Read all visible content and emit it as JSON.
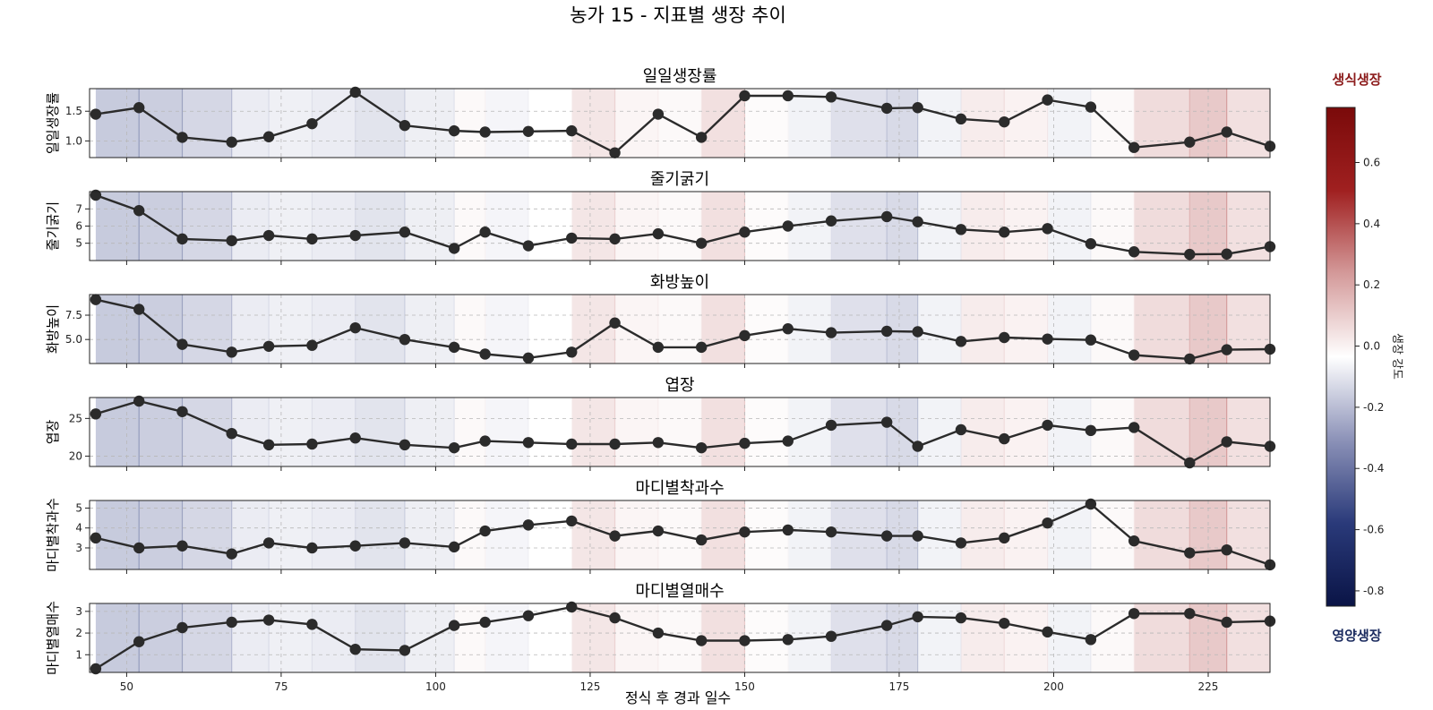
{
  "title": "농가 15 - 지표별 생장 추이",
  "xlabel": "정식 후 경과 일수",
  "colorbar": {
    "label": "생장 강도",
    "top_annotation": "생식생장",
    "bottom_annotation": "영양생장",
    "top_annotation_color": "#8b1a1a",
    "bottom_annotation_color": "#1a2a5e",
    "range": [
      -0.85,
      0.78
    ],
    "ticks": [
      0.6,
      0.4,
      0.2,
      0.0,
      -0.2,
      -0.4,
      -0.6,
      -0.8
    ],
    "tick_labels": [
      "0.6",
      "0.4",
      "0.2",
      "0.0",
      "-0.2",
      "-0.4",
      "-0.6",
      "-0.8"
    ],
    "colormap": [
      "#0a1446",
      "#2a3a7a",
      "#8c92b8",
      "#ffffff",
      "#d49a9a",
      "#a02020",
      "#7a0a0a"
    ]
  },
  "chart_data": {
    "type": "line",
    "shared_x_axis": true,
    "xlim": [
      44,
      235
    ],
    "x_ticks": [
      50,
      75,
      100,
      125,
      150,
      175,
      200,
      225
    ],
    "x_tick_labels": [
      "50",
      "75",
      "100",
      "125",
      "150",
      "175",
      "200",
      "225"
    ],
    "grid": true,
    "background_bands": {
      "description": "growth strength shading per interval",
      "edges": [
        45,
        52,
        59,
        67,
        73,
        80,
        87,
        95,
        103,
        108,
        115,
        122,
        129,
        136,
        143,
        150,
        157,
        164,
        173,
        178,
        185,
        192,
        199,
        206,
        213,
        222,
        228,
        235
      ],
      "values": [
        -0.45,
        -0.42,
        -0.33,
        -0.15,
        -0.12,
        -0.15,
        -0.22,
        -0.13,
        0.05,
        -0.08,
        0.0,
        0.2,
        0.08,
        0.05,
        0.25,
        0.03,
        -0.1,
        -0.25,
        -0.3,
        -0.1,
        0.15,
        0.1,
        -0.1,
        0.05,
        0.28,
        0.4,
        0.25
      ]
    },
    "x": [
      45,
      52,
      59,
      67,
      73,
      80,
      87,
      95,
      103,
      108,
      115,
      122,
      129,
      136,
      143,
      150,
      157,
      164,
      173,
      178,
      185,
      192,
      199,
      206,
      213,
      222,
      228,
      235
    ],
    "panels": [
      {
        "title": "일일생장률",
        "ylabel": "일일생장률",
        "ylim": [
          0.78,
          1.82
        ],
        "yticks": [
          1.0,
          1.5
        ],
        "ytick_labels": [
          "1.0",
          "1.5"
        ],
        "values": [
          1.45,
          1.56,
          1.06,
          0.98,
          1.07,
          1.29,
          1.82,
          1.26,
          1.17,
          1.15,
          1.16,
          1.17,
          0.8,
          1.45,
          1.06,
          1.76,
          1.76,
          1.74,
          1.55,
          1.56,
          1.37,
          1.32,
          1.69,
          1.57,
          0.89,
          0.98,
          1.15,
          0.91
        ]
      },
      {
        "title": "줄기굵기",
        "ylabel": "줄기굵기",
        "ylim": [
          4.2,
          7.8
        ],
        "yticks": [
          5,
          6,
          7
        ],
        "ytick_labels": [
          "5",
          "6",
          "7"
        ],
        "values": [
          7.8,
          6.9,
          5.25,
          5.15,
          5.45,
          5.25,
          5.45,
          5.65,
          4.7,
          5.65,
          4.85,
          5.3,
          5.25,
          5.55,
          5.0,
          5.65,
          6.0,
          6.3,
          6.55,
          6.25,
          5.8,
          5.65,
          5.85,
          4.97,
          4.5,
          4.35,
          4.37,
          4.8
        ]
      },
      {
        "title": "화방높이",
        "ylabel": "화방높이",
        "ylim": [
          2.9,
          9.25
        ],
        "yticks": [
          5.0,
          7.5
        ],
        "ytick_labels": [
          "5.0",
          "7.5"
        ],
        "values": [
          9.1,
          8.1,
          4.5,
          3.7,
          4.3,
          4.4,
          6.2,
          5.0,
          4.2,
          3.5,
          3.1,
          3.7,
          6.7,
          4.2,
          4.2,
          5.4,
          6.1,
          5.7,
          5.85,
          5.8,
          4.8,
          5.2,
          5.05,
          4.95,
          3.4,
          3.0,
          3.95,
          4.0
        ]
      },
      {
        "title": "엽장",
        "ylabel": "엽장",
        "ylim": [
          19.1,
          27.3
        ],
        "yticks": [
          20,
          25
        ],
        "ytick_labels": [
          "20",
          "25"
        ],
        "values": [
          25.6,
          27.3,
          25.9,
          23.0,
          21.5,
          21.6,
          22.4,
          21.5,
          21.1,
          22.0,
          21.8,
          21.6,
          21.6,
          21.8,
          21.1,
          21.7,
          22.0,
          24.1,
          24.5,
          21.3,
          23.5,
          22.3,
          24.1,
          23.4,
          23.8,
          19.1,
          21.9,
          21.3
        ]
      },
      {
        "title": "마디별착과수",
        "ylabel": "마디별착과수",
        "ylim": [
          2.1,
          5.2
        ],
        "yticks": [
          3,
          4,
          5
        ],
        "ytick_labels": [
          "3",
          "4",
          "5"
        ],
        "values": [
          3.5,
          3.0,
          3.1,
          2.7,
          3.25,
          3.0,
          3.1,
          3.25,
          3.05,
          3.85,
          4.15,
          4.35,
          3.6,
          3.85,
          3.4,
          3.8,
          3.9,
          3.8,
          3.6,
          3.6,
          3.25,
          3.5,
          4.25,
          5.2,
          3.35,
          2.75,
          2.9,
          2.15
        ]
      },
      {
        "title": "마디별열매수",
        "ylabel": "마디별열매수",
        "ylim": [
          0.35,
          3.2
        ],
        "yticks": [
          1,
          2,
          3
        ],
        "ytick_labels": [
          "1",
          "2",
          "3"
        ],
        "values": [
          0.35,
          1.6,
          2.25,
          2.5,
          2.6,
          2.4,
          1.25,
          1.2,
          2.35,
          2.5,
          2.8,
          3.2,
          2.7,
          2.0,
          1.65,
          1.65,
          1.7,
          1.85,
          2.35,
          2.75,
          2.7,
          2.45,
          2.05,
          1.7,
          2.9,
          2.9,
          2.5,
          2.55
        ]
      }
    ]
  }
}
